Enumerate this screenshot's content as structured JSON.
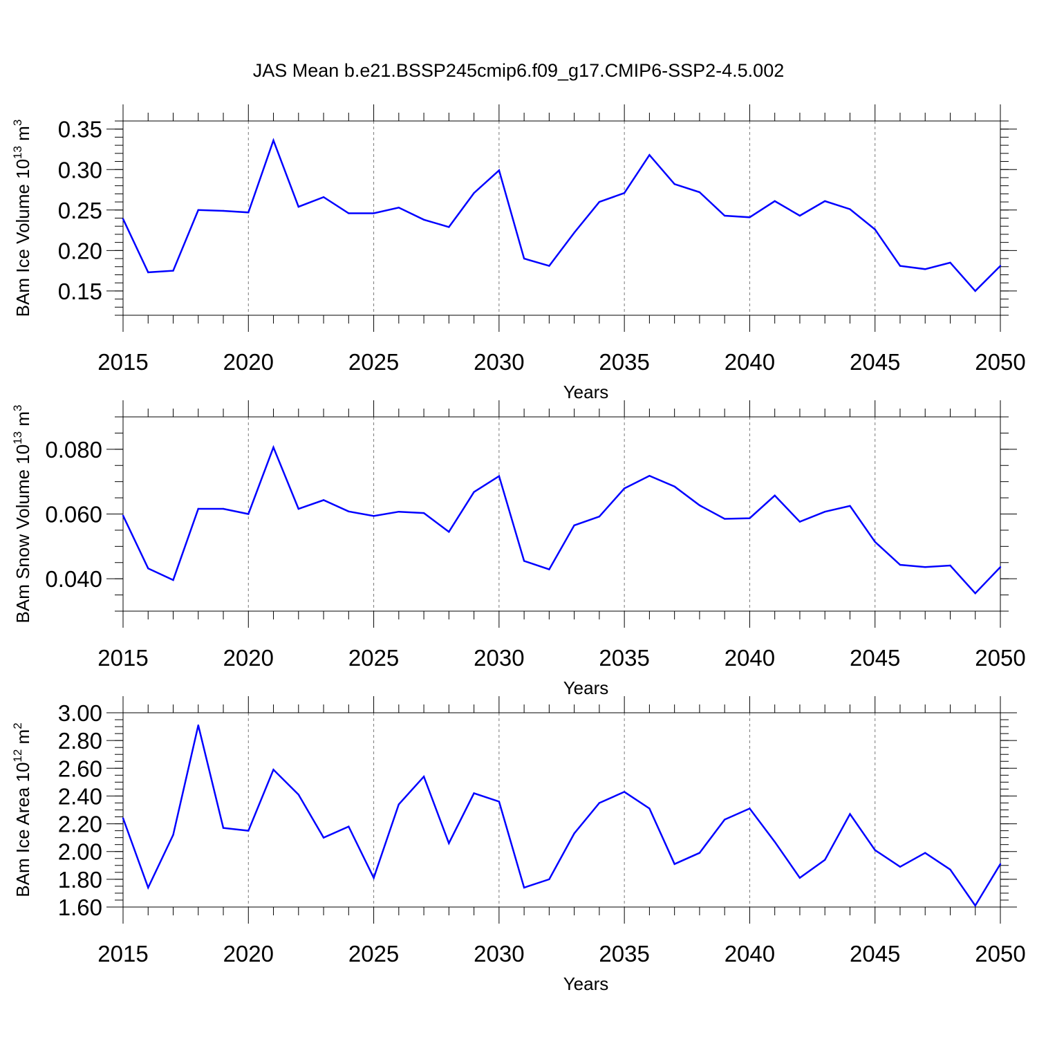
{
  "title": "JAS Mean b.e21.BSSP245cmip6.f09_g17.CMIP6-SSP2-4.5.002",
  "line_color": "#0000ff",
  "chart_data": [
    {
      "type": "line",
      "ylabel_main": "BAm Ice Volume 10",
      "ylabel_exp": "13",
      "ylabel_unit": " m",
      "ylabel_unit_exp": "3",
      "xlabel": "Years",
      "xlim": [
        2015,
        2050
      ],
      "ylim": [
        0.12,
        0.36
      ],
      "x_ticks": [
        "2015",
        "2020",
        "2025",
        "2030",
        "2035",
        "2040",
        "2045",
        "2050"
      ],
      "y_ticks": [
        "0.15",
        "0.20",
        "0.25",
        "0.30",
        "0.35"
      ],
      "y_minor_step": 0.01,
      "grid": "dashed vertical at major x ticks",
      "x": [
        2015,
        2016,
        2017,
        2018,
        2019,
        2020,
        2021,
        2022,
        2023,
        2024,
        2025,
        2026,
        2027,
        2028,
        2029,
        2030,
        2031,
        2032,
        2033,
        2034,
        2035,
        2036,
        2037,
        2038,
        2039,
        2040,
        2041,
        2042,
        2043,
        2044,
        2045,
        2046,
        2047,
        2048,
        2049,
        2050
      ],
      "series": [
        {
          "values": [
            0.239,
            0.173,
            0.175,
            0.25,
            0.249,
            0.247,
            0.336,
            0.254,
            0.266,
            0.246,
            0.246,
            0.253,
            0.238,
            0.229,
            0.271,
            0.299,
            0.19,
            0.181,
            0.222,
            0.26,
            0.271,
            0.318,
            0.282,
            0.272,
            0.243,
            0.241,
            0.261,
            0.243,
            0.261,
            0.251,
            0.226,
            0.181,
            0.177,
            0.185,
            0.15,
            0.181
          ]
        }
      ]
    },
    {
      "type": "line",
      "ylabel_main": "BAm Snow Volume 10",
      "ylabel_exp": "13",
      "ylabel_unit": " m",
      "ylabel_unit_exp": "3",
      "xlabel": "Years",
      "xlim": [
        2015,
        2050
      ],
      "ylim": [
        0.03,
        0.09
      ],
      "x_ticks": [
        "2015",
        "2020",
        "2025",
        "2030",
        "2035",
        "2040",
        "2045",
        "2050"
      ],
      "y_ticks": [
        "0.040",
        "0.060",
        "0.080"
      ],
      "y_minor_step": 0.005,
      "grid": "dashed vertical at major x ticks",
      "x": [
        2015,
        2016,
        2017,
        2018,
        2019,
        2020,
        2021,
        2022,
        2023,
        2024,
        2025,
        2026,
        2027,
        2028,
        2029,
        2030,
        2031,
        2032,
        2033,
        2034,
        2035,
        2036,
        2037,
        2038,
        2039,
        2040,
        2041,
        2042,
        2043,
        2044,
        2045,
        2046,
        2047,
        2048,
        2049,
        2050
      ],
      "series": [
        {
          "values": [
            0.0595,
            0.0432,
            0.0396,
            0.0616,
            0.0616,
            0.06,
            0.0806,
            0.0616,
            0.0643,
            0.0608,
            0.0594,
            0.0607,
            0.0603,
            0.0545,
            0.0668,
            0.0717,
            0.0455,
            0.0429,
            0.0565,
            0.0592,
            0.0679,
            0.0718,
            0.0685,
            0.0627,
            0.0585,
            0.0587,
            0.0657,
            0.0576,
            0.0607,
            0.0625,
            0.0514,
            0.0443,
            0.0436,
            0.0441,
            0.0355,
            0.0436
          ]
        }
      ]
    },
    {
      "type": "line",
      "ylabel_main": "BAm Ice Area 10",
      "ylabel_exp": "12",
      "ylabel_unit": " m",
      "ylabel_unit_exp": "2",
      "xlabel": "Years",
      "xlim": [
        2015,
        2050
      ],
      "ylim": [
        1.6,
        3.0
      ],
      "x_ticks": [
        "2015",
        "2020",
        "2025",
        "2030",
        "2035",
        "2040",
        "2045",
        "2050"
      ],
      "y_ticks": [
        "1.60",
        "1.80",
        "2.00",
        "2.20",
        "2.40",
        "2.60",
        "2.80",
        "3.00"
      ],
      "y_minor_step": 0.05,
      "grid": "dashed vertical at major x ticks",
      "x": [
        2015,
        2016,
        2017,
        2018,
        2019,
        2020,
        2021,
        2022,
        2023,
        2024,
        2025,
        2026,
        2027,
        2028,
        2029,
        2030,
        2031,
        2032,
        2033,
        2034,
        2035,
        2036,
        2037,
        2038,
        2039,
        2040,
        2041,
        2042,
        2043,
        2044,
        2045,
        2046,
        2047,
        2048,
        2049,
        2050
      ],
      "series": [
        {
          "values": [
            2.24,
            1.74,
            2.12,
            2.91,
            2.17,
            2.15,
            2.59,
            2.41,
            2.1,
            2.18,
            1.81,
            2.34,
            2.54,
            2.06,
            2.42,
            2.36,
            1.74,
            1.8,
            2.13,
            2.35,
            2.43,
            2.31,
            1.91,
            1.99,
            2.23,
            2.31,
            2.07,
            1.81,
            1.94,
            2.27,
            2.01,
            1.89,
            1.99,
            1.87,
            1.61,
            1.91
          ]
        }
      ]
    }
  ]
}
